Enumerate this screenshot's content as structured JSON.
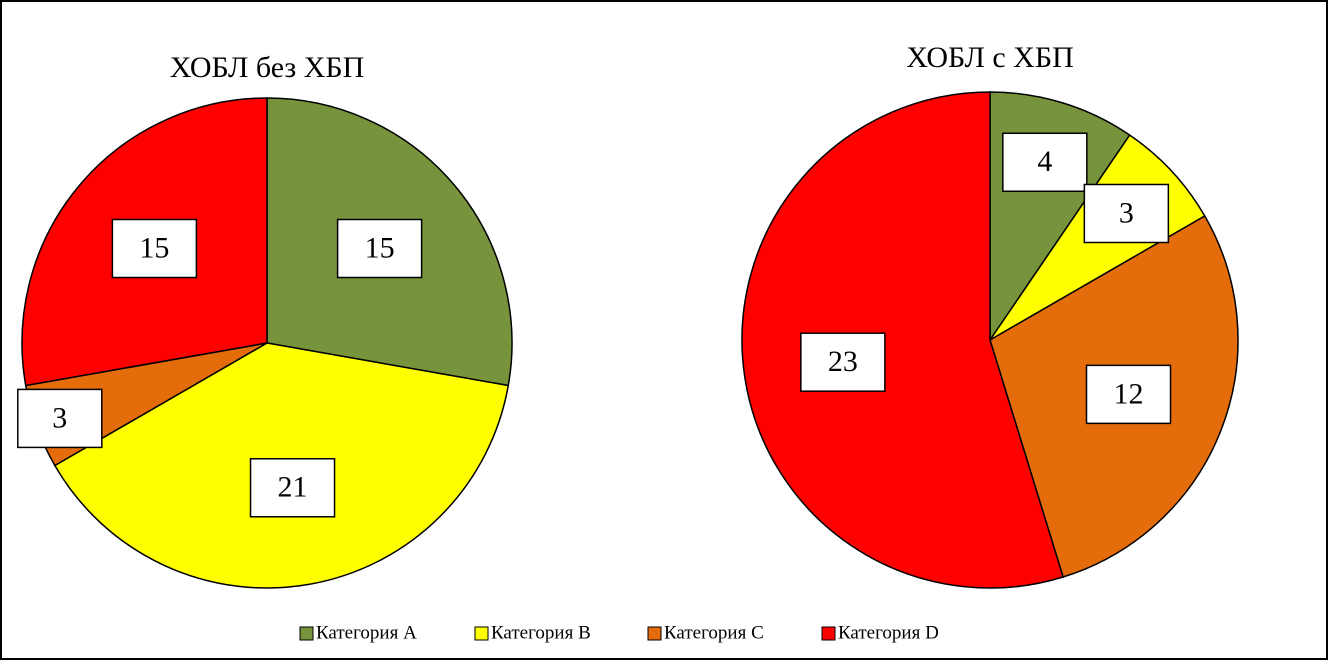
{
  "chart_data": [
    {
      "type": "pie",
      "title": "ХОБЛ без ХБП",
      "categories": [
        "Категория A",
        "Категория B",
        "Категория C",
        "Категория D"
      ],
      "values": [
        15,
        21,
        3,
        15
      ],
      "colors": [
        "#77933c",
        "#ffff00",
        "#e46c0a",
        "#ff0000"
      ],
      "legend": "bottom"
    },
    {
      "type": "pie",
      "title": "ХОБЛ с ХБП",
      "categories": [
        "Категория A",
        "Категория B",
        "Категория C",
        "Категория D"
      ],
      "values": [
        4,
        3,
        12,
        23
      ],
      "colors": [
        "#77933c",
        "#ffff00",
        "#e46c0a",
        "#ff0000"
      ],
      "legend": "bottom"
    }
  ]
}
